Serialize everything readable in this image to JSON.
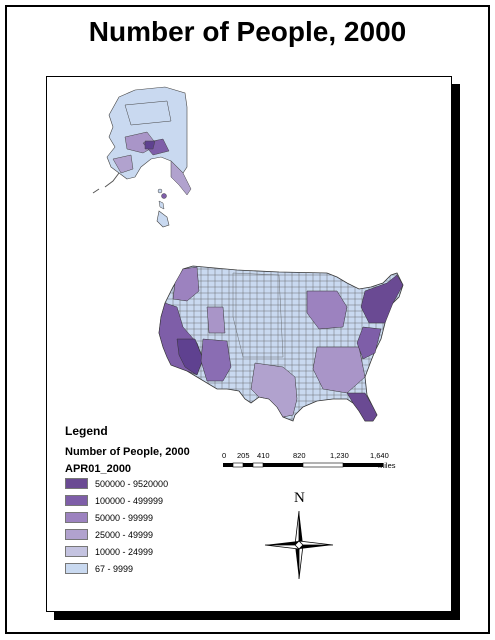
{
  "title": "Number of People, 2000",
  "legend": {
    "heading": "Legend",
    "layer_name": "Number of People, 2000",
    "field_name": "APR01_2000",
    "classes": [
      {
        "label": "500000 - 9520000",
        "color": "#6a4a93"
      },
      {
        "label": "100000 - 499999",
        "color": "#7e5ea8"
      },
      {
        "label": "50000 - 99999",
        "color": "#9c82bf"
      },
      {
        "label": "25000 - 49999",
        "color": "#b1a2ce"
      },
      {
        "label": "10000 - 24999",
        "color": "#c4c3e0"
      },
      {
        "label": "67 - 9999",
        "color": "#c9d9f0"
      }
    ]
  },
  "scale_bar": {
    "ticks": [
      "0",
      "205",
      "410",
      "820",
      "1,230",
      "1,640"
    ],
    "unit": "Miles"
  },
  "north_arrow": {
    "label": "N"
  }
}
